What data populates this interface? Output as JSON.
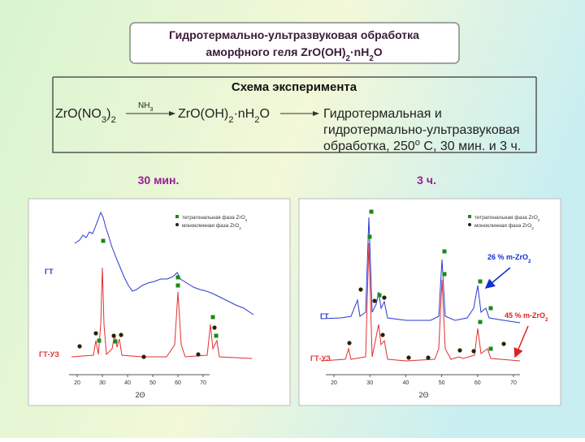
{
  "header": {
    "line1": "Гидротермально-ультразвуковая обработка",
    "line2": [
      {
        "t": "аморфного геля ZrO(OH)"
      },
      {
        "t": "2",
        "s": "sub"
      },
      {
        "t": "·nH"
      },
      {
        "t": "2",
        "s": "sub"
      },
      {
        "t": "O"
      }
    ]
  },
  "scheme": {
    "title": "Схема эксперимента",
    "reactant": [
      {
        "t": "ZrO(NO"
      },
      {
        "t": "3",
        "s": "sub"
      },
      {
        "t": ")"
      },
      {
        "t": "2",
        "s": "sub"
      }
    ],
    "reagent": [
      {
        "t": "NH"
      },
      {
        "t": "3",
        "s": "sub"
      }
    ],
    "product": [
      {
        "t": "ZrO(OH)"
      },
      {
        "t": "2",
        "s": "sub"
      },
      {
        "t": "·nH"
      },
      {
        "t": "2",
        "s": "sub"
      },
      {
        "t": "O"
      }
    ],
    "process": [
      [
        {
          "t": "Гидротермальная и"
        }
      ],
      [
        {
          "t": "гидротермально-ультразвуковая"
        }
      ],
      [
        {
          "t": "обработка, 250"
        },
        {
          "t": "o",
          "s": "sup"
        },
        {
          "t": " С, 30 мин. и 3 ч."
        }
      ]
    ]
  },
  "panels": [
    {
      "title": "30 мин.",
      "legend": [
        {
          "text": [
            {
              "t": "тетрагональная фаза ZrO"
            },
            {
              "t": "2",
              "s": "sub"
            }
          ],
          "color": "#1a8a1a",
          "shape": "square"
        },
        {
          "text": [
            {
              "t": "моноклинная фаза ZrO"
            },
            {
              "t": "2",
              "s": "sub"
            }
          ],
          "color": "#2b2200",
          "shape": "circle"
        }
      ],
      "curve_labels": [
        "ГТ",
        "ГТ-УЗ"
      ],
      "x_label": "2Θ",
      "x_ticks": [
        20,
        30,
        40,
        50,
        60,
        70
      ]
    },
    {
      "title": "3 ч.",
      "legend": [
        {
          "text": [
            {
              "t": "тетрагональная фаза ZrO"
            },
            {
              "t": "2",
              "s": "sub"
            }
          ],
          "color": "#1a8a1a",
          "shape": "square"
        },
        {
          "text": [
            {
              "t": "моноклинная фаза ZrO"
            },
            {
              "t": "2",
              "s": "sub"
            }
          ],
          "color": "#2b2200",
          "shape": "circle"
        }
      ],
      "curve_labels": [
        "ГТ",
        "ГТ-УЗ"
      ],
      "x_label": "2Θ",
      "x_ticks": [
        20,
        30,
        40,
        50,
        60,
        70
      ],
      "annotations": [
        [
          {
            "t": "26 % m-ZrO"
          },
          {
            "t": "2",
            "s": "sub"
          }
        ],
        [
          {
            "t": "45 % m-ZrO"
          },
          {
            "t": "2",
            "s": "sub"
          }
        ]
      ]
    }
  ]
}
